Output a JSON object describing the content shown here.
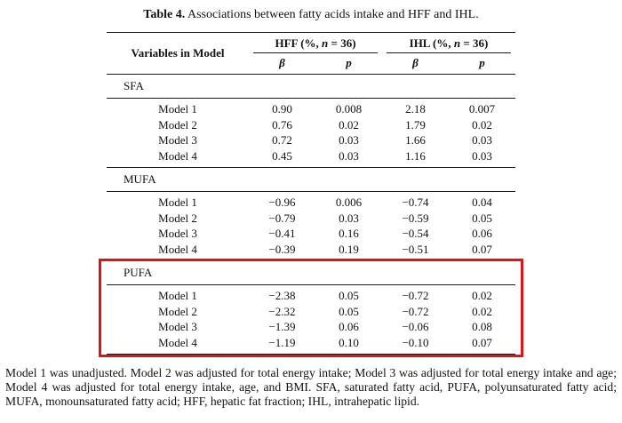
{
  "title": {
    "label": "Table 4.",
    "text": " Associations between fatty acids intake and HFF and IHL."
  },
  "table": {
    "col1_header": "Variables in Model",
    "groups": [
      {
        "prefix": "HFF (%, ",
        "n": "n",
        "suffix": " = 36)"
      },
      {
        "prefix": "IHL (%, ",
        "n": "n",
        "suffix": " = 36)"
      }
    ],
    "subheaders": [
      "β",
      "p",
      "β",
      "p"
    ],
    "sections": [
      {
        "name": "SFA",
        "rows": [
          {
            "label": "Model 1",
            "cells": [
              "0.90",
              "0.008",
              "2.18",
              "0.007"
            ]
          },
          {
            "label": "Model 2",
            "cells": [
              "0.76",
              "0.02",
              "1.79",
              "0.02"
            ]
          },
          {
            "label": "Model 3",
            "cells": [
              "0.72",
              "0.03",
              "1.66",
              "0.03"
            ]
          },
          {
            "label": "Model 4",
            "cells": [
              "0.45",
              "0.03",
              "1.16",
              "0.03"
            ]
          }
        ]
      },
      {
        "name": "MUFA",
        "rows": [
          {
            "label": "Model 1",
            "cells": [
              "−0.96",
              "0.006",
              "−0.74",
              "0.04"
            ]
          },
          {
            "label": "Model 2",
            "cells": [
              "−0.79",
              "0.03",
              "−0.59",
              "0.05"
            ]
          },
          {
            "label": "Model 3",
            "cells": [
              "−0.41",
              "0.16",
              "−0.54",
              "0.06"
            ]
          },
          {
            "label": "Model 4",
            "cells": [
              "−0.39",
              "0.19",
              "−0.51",
              "0.07"
            ]
          }
        ]
      },
      {
        "name": "PUFA",
        "highlighted": true,
        "rows": [
          {
            "label": "Model 1",
            "cells": [
              "−2.38",
              "0.05",
              "−0.72",
              "0.02"
            ]
          },
          {
            "label": "Model 2",
            "cells": [
              "−2.32",
              "0.05",
              "−0.72",
              "0.02"
            ]
          },
          {
            "label": "Model 3",
            "cells": [
              "−1.39",
              "0.06",
              "−0.06",
              "0.08"
            ]
          },
          {
            "label": "Model 4",
            "cells": [
              "−1.19",
              "0.10",
              "−0.10",
              "0.07"
            ]
          }
        ]
      }
    ]
  },
  "highlight_color": "#e01313",
  "footnote": "Model 1 was unadjusted.  Model 2 was adjusted for total energy intake; Model 3 was adjusted for total energy intake and age; Model 4 was adjusted for total energy intake, age, and BMI. SFA, saturated fatty acid, PUFA, polyunsaturated fatty acid; MUFA, monounsaturated fatty acid; HFF, hepatic fat fraction; IHL, intrahepatic lipid."
}
